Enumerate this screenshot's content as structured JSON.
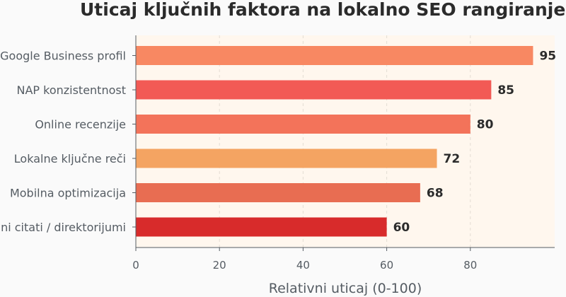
{
  "chart_data": {
    "type": "bar",
    "orientation": "horizontal",
    "title": "Uticaj ključnih faktora na lokalno SEO rangiranje",
    "xlabel": "Relativni uticaj (0-100)",
    "ylabel": "",
    "categories": [
      "Google Business profil",
      "NAP konzistentnost",
      "Online recenzije",
      "Lokalne ključne reči",
      "Mobilna optimizacija",
      "Lokalni citati / direktorijumi"
    ],
    "values": [
      95,
      85,
      80,
      72,
      68,
      60
    ],
    "value_labels": [
      "95",
      "85",
      "80",
      "72",
      "68",
      "60"
    ],
    "bar_colors": [
      "#f88862",
      "#f25a55",
      "#f3735a",
      "#f4a462",
      "#e86d52",
      "#d82b2b"
    ],
    "xlim": [
      0,
      100
    ],
    "xticks": [
      0,
      20,
      40,
      60,
      80
    ],
    "xtick_labels": [
      "0",
      "20",
      "40",
      "60",
      "80"
    ],
    "grid": true,
    "plot_background": "#fff7ee",
    "legend": "none"
  }
}
